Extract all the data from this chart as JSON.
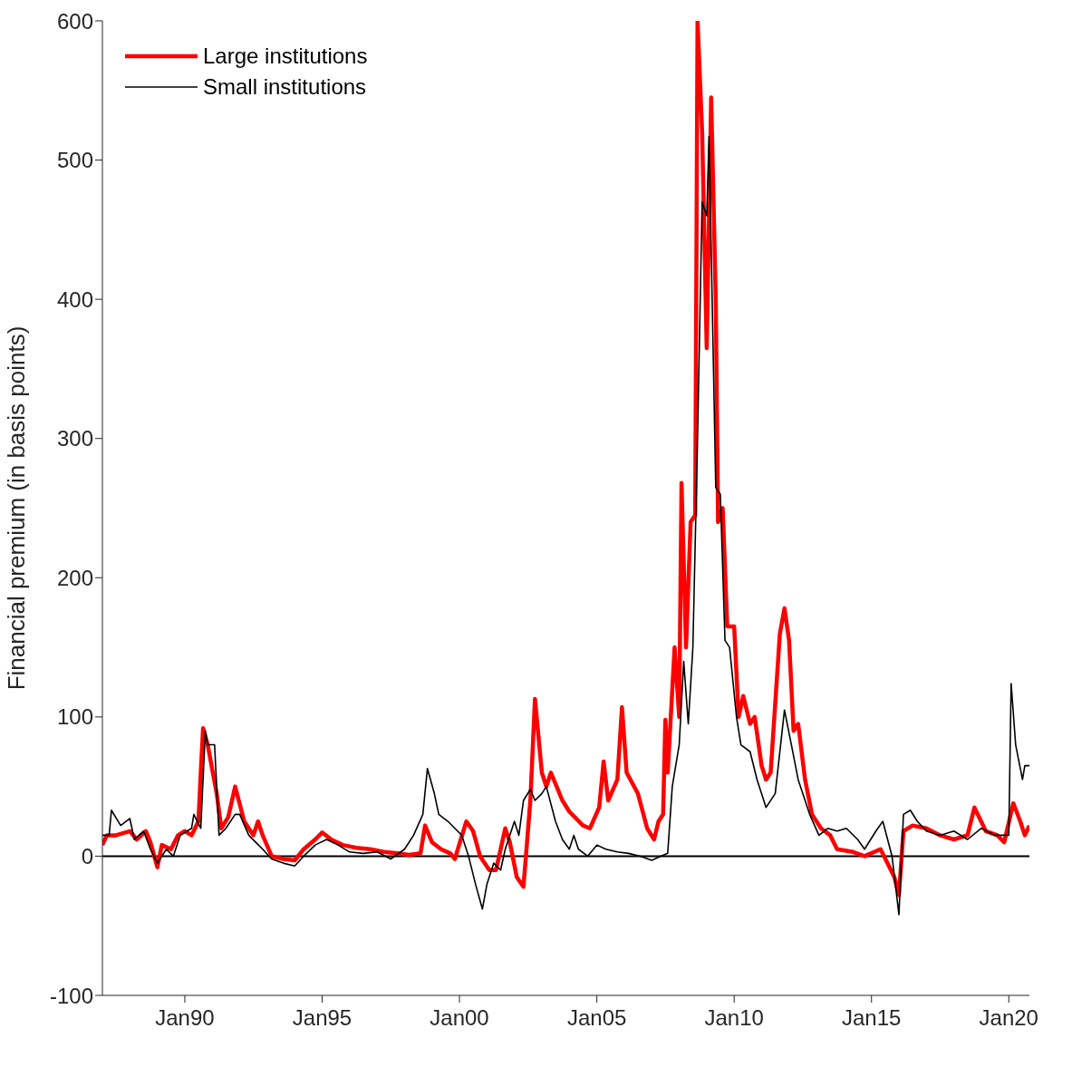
{
  "chart_data": {
    "type": "line",
    "ylabel": "Financial premium (in basis points)",
    "xlim": [
      "1987-01",
      "2020-10"
    ],
    "xticks": [
      {
        "value": "1990-01",
        "label": "Jan90"
      },
      {
        "value": "1995-01",
        "label": "Jan95"
      },
      {
        "value": "2000-01",
        "label": "Jan00"
      },
      {
        "value": "2005-01",
        "label": "Jan05"
      },
      {
        "value": "2010-01",
        "label": "Jan10"
      },
      {
        "value": "2015-01",
        "label": "Jan15"
      },
      {
        "value": "2020-01",
        "label": "Jan20"
      }
    ],
    "ylim": [
      -100,
      600
    ],
    "yticks": [
      -100,
      0,
      100,
      200,
      300,
      400,
      500,
      600
    ],
    "grid": false,
    "legend": "top left",
    "marker": "none",
    "line_style": "solid",
    "ref_lines": [
      {
        "axis": "y",
        "value": 0,
        "label": null,
        "color": "#000000"
      }
    ],
    "series": [
      {
        "name": "Large institutions",
        "color": "#ff0000",
        "x": [
          "1987-01",
          "1987-03",
          "1987-07",
          "1988-01",
          "1988-04",
          "1988-08",
          "1988-10",
          "1989-01",
          "1989-03",
          "1989-07",
          "1989-10",
          "1990-01",
          "1990-04",
          "1990-07",
          "1990-08",
          "1990-09",
          "1990-11",
          "1991-03",
          "1991-05",
          "1991-08",
          "1991-11",
          "1992-03",
          "1992-07",
          "1992-09",
          "1992-11",
          "1993-03",
          "1993-08",
          "1994-01",
          "1994-05",
          "1994-10",
          "1995-01",
          "1995-05",
          "1995-10",
          "1996-04",
          "1996-10",
          "1997-04",
          "1997-10",
          "1998-03",
          "1998-08",
          "1998-10",
          "1999-01",
          "1999-05",
          "1999-09",
          "1999-11",
          "2000-04",
          "2000-07",
          "2000-10",
          "2001-02",
          "2001-05",
          "2001-09",
          "2001-11",
          "2002-02",
          "2002-05",
          "2002-08",
          "2002-10",
          "2003-01",
          "2003-03",
          "2003-05",
          "2003-10",
          "2004-01",
          "2004-07",
          "2004-10",
          "2005-02",
          "2005-04",
          "2005-06",
          "2005-10",
          "2005-12",
          "2006-02",
          "2006-07",
          "2006-11",
          "2007-02",
          "2007-04",
          "2007-06",
          "2007-07",
          "2007-08",
          "2007-11",
          "2008-01",
          "2008-02",
          "2008-04",
          "2008-06",
          "2008-08",
          "2008-09",
          "2008-11",
          "2009-01",
          "2009-03",
          "2009-05",
          "2009-06",
          "2009-08",
          "2009-10",
          "2010-01",
          "2010-03",
          "2010-05",
          "2010-08",
          "2010-10",
          "2011-01",
          "2011-03",
          "2011-05",
          "2011-09",
          "2011-11",
          "2012-01",
          "2012-03",
          "2012-05",
          "2012-08",
          "2012-11",
          "2013-03",
          "2013-07",
          "2013-10",
          "2014-05",
          "2014-10",
          "2015-05",
          "2015-08",
          "2015-11",
          "2016-01",
          "2016-03",
          "2016-07",
          "2017-01",
          "2017-07",
          "2018-01",
          "2018-07",
          "2018-10",
          "2019-03",
          "2019-08",
          "2019-11",
          "2020-03",
          "2020-06",
          "2020-08",
          "2020-10"
        ],
        "values": [
          8,
          15,
          15,
          18,
          12,
          18,
          10,
          -8,
          8,
          5,
          15,
          18,
          15,
          25,
          60,
          92,
          80,
          45,
          20,
          28,
          50,
          25,
          15,
          25,
          15,
          0,
          -2,
          -3,
          5,
          12,
          17,
          12,
          8,
          6,
          5,
          3,
          2,
          1,
          2,
          22,
          10,
          5,
          2,
          -2,
          25,
          18,
          0,
          -10,
          -10,
          20,
          10,
          -15,
          -22,
          40,
          113,
          60,
          50,
          60,
          40,
          32,
          22,
          20,
          35,
          68,
          40,
          55,
          107,
          60,
          45,
          20,
          12,
          25,
          30,
          98,
          60,
          150,
          100,
          268,
          150,
          240,
          245,
          600,
          520,
          365,
          545,
          400,
          240,
          250,
          165,
          165,
          100,
          115,
          95,
          100,
          65,
          55,
          60,
          160,
          178,
          155,
          90,
          95,
          55,
          30,
          20,
          15,
          5,
          3,
          0,
          5,
          -5,
          -15,
          -28,
          18,
          22,
          20,
          15,
          12,
          15,
          35,
          18,
          15,
          10,
          38,
          25,
          15,
          22
        ]
      },
      {
        "name": "Small institutions",
        "color": "#000000",
        "x": [
          "1987-01",
          "1987-04",
          "1987-05",
          "1987-09",
          "1988-01",
          "1988-03",
          "1988-07",
          "1988-10",
          "1989-01",
          "1989-05",
          "1989-08",
          "1989-11",
          "1990-04",
          "1990-05",
          "1990-08",
          "1990-10",
          "1990-11",
          "1991-02",
          "1991-04",
          "1991-07",
          "1991-11",
          "1992-01",
          "1992-05",
          "1992-08",
          "1992-11",
          "1993-03",
          "1993-08",
          "1994-01",
          "1994-05",
          "1994-10",
          "1995-03",
          "1995-08",
          "1996-01",
          "1996-07",
          "1997-01",
          "1997-07",
          "1998-01",
          "1998-05",
          "1998-09",
          "1998-11",
          "1999-02",
          "1999-04",
          "1999-08",
          "1999-11",
          "2000-02",
          "2000-05",
          "2000-08",
          "2000-11",
          "2001-01",
          "2001-04",
          "2001-07",
          "2001-09",
          "2001-11",
          "2002-01",
          "2002-03",
          "2002-05",
          "2002-08",
          "2002-10",
          "2003-01",
          "2003-03",
          "2003-07",
          "2003-10",
          "2004-01",
          "2004-03",
          "2004-05",
          "2004-09",
          "2005-01",
          "2005-05",
          "2005-10",
          "2006-03",
          "2006-08",
          "2007-01",
          "2007-05",
          "2007-08",
          "2007-10",
          "2008-01",
          "2008-03",
          "2008-05",
          "2008-07",
          "2008-09",
          "2008-11",
          "2009-01",
          "2009-02",
          "2009-04",
          "2009-05",
          "2009-07",
          "2009-09",
          "2009-11",
          "2010-02",
          "2010-04",
          "2010-08",
          "2010-11",
          "2011-03",
          "2011-07",
          "2011-11",
          "2012-02",
          "2012-05",
          "2012-10",
          "2013-02",
          "2013-06",
          "2013-10",
          "2014-02",
          "2014-07",
          "2014-10",
          "2015-03",
          "2015-06",
          "2015-10",
          "2016-01",
          "2016-03",
          "2016-06",
          "2016-09",
          "2017-01",
          "2017-07",
          "2018-01",
          "2018-07",
          "2019-01",
          "2019-07",
          "2020-01",
          "2020-02",
          "2020-04",
          "2020-07",
          "2020-08",
          "2020-10"
        ],
        "values": [
          15,
          15,
          33,
          22,
          27,
          12,
          18,
          5,
          -5,
          5,
          0,
          15,
          20,
          30,
          20,
          90,
          80,
          80,
          15,
          20,
          30,
          30,
          15,
          10,
          5,
          -2,
          -5,
          -7,
          0,
          8,
          12,
          8,
          3,
          2,
          3,
          -2,
          5,
          15,
          30,
          63,
          45,
          30,
          25,
          20,
          15,
          0,
          -20,
          -38,
          -20,
          -5,
          -10,
          5,
          15,
          25,
          15,
          40,
          48,
          40,
          45,
          50,
          25,
          12,
          5,
          15,
          5,
          0,
          8,
          5,
          3,
          2,
          0,
          -3,
          0,
          2,
          50,
          80,
          140,
          95,
          150,
          300,
          470,
          460,
          517,
          350,
          265,
          260,
          155,
          150,
          100,
          80,
          75,
          55,
          35,
          45,
          105,
          80,
          55,
          30,
          15,
          20,
          18,
          20,
          12,
          5,
          18,
          25,
          0,
          -42,
          30,
          33,
          25,
          18,
          15,
          18,
          12,
          20,
          15,
          15,
          124,
          80,
          55,
          65,
          65
        ]
      }
    ]
  }
}
